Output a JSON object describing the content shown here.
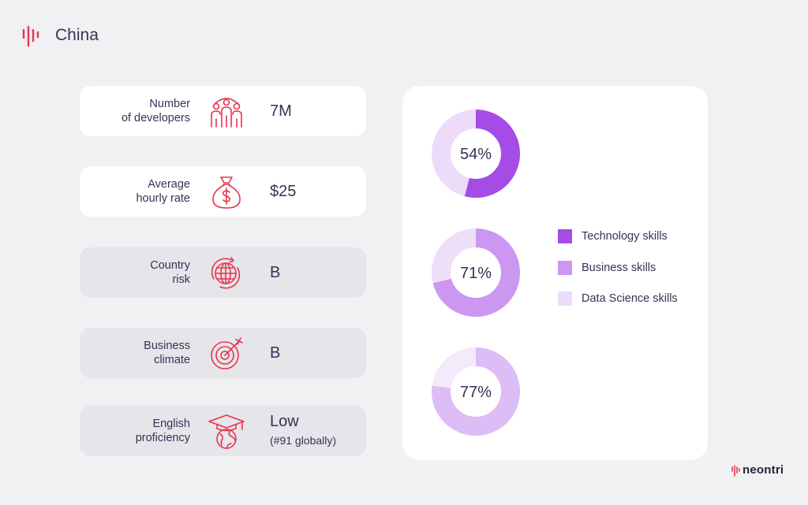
{
  "header": {
    "title": "China"
  },
  "cards": [
    {
      "label_lines": [
        "Number",
        "of developers"
      ],
      "value": "7M",
      "icon": "developers-icon"
    },
    {
      "label_lines": [
        "Average",
        "hourly rate"
      ],
      "value": "$25",
      "icon": "money-bag-icon"
    },
    {
      "label_lines": [
        "Country",
        "risk"
      ],
      "value": "B",
      "icon": "globe-risk-icon"
    },
    {
      "label_lines": [
        "Business",
        "climate"
      ],
      "value": "B",
      "icon": "target-icon"
    },
    {
      "label_lines": [
        "English",
        "proficiency"
      ],
      "value": "Low",
      "value_sub": "(#91 globally)",
      "icon": "graduation-globe-icon"
    }
  ],
  "chart_data": {
    "type": "pie",
    "series": [
      {
        "name": "Technology skills",
        "value": 54,
        "label": "54%",
        "color": "#a54be6"
      },
      {
        "name": "Business skills",
        "value": 71,
        "label": "71%",
        "color": "#cb97f0"
      },
      {
        "name": "Data Science skills",
        "value": 77,
        "label": "77%",
        "color": "#dcbdf5"
      }
    ],
    "track_colors": [
      "#ecdbf9",
      "#eedff9",
      "#f4eafb"
    ],
    "legend": {
      "placement": "right"
    }
  },
  "brand": {
    "name": "neontri"
  },
  "colors": {
    "accent": "#e8344e",
    "text": "#3d2f55",
    "background": "#f1f0f3"
  }
}
